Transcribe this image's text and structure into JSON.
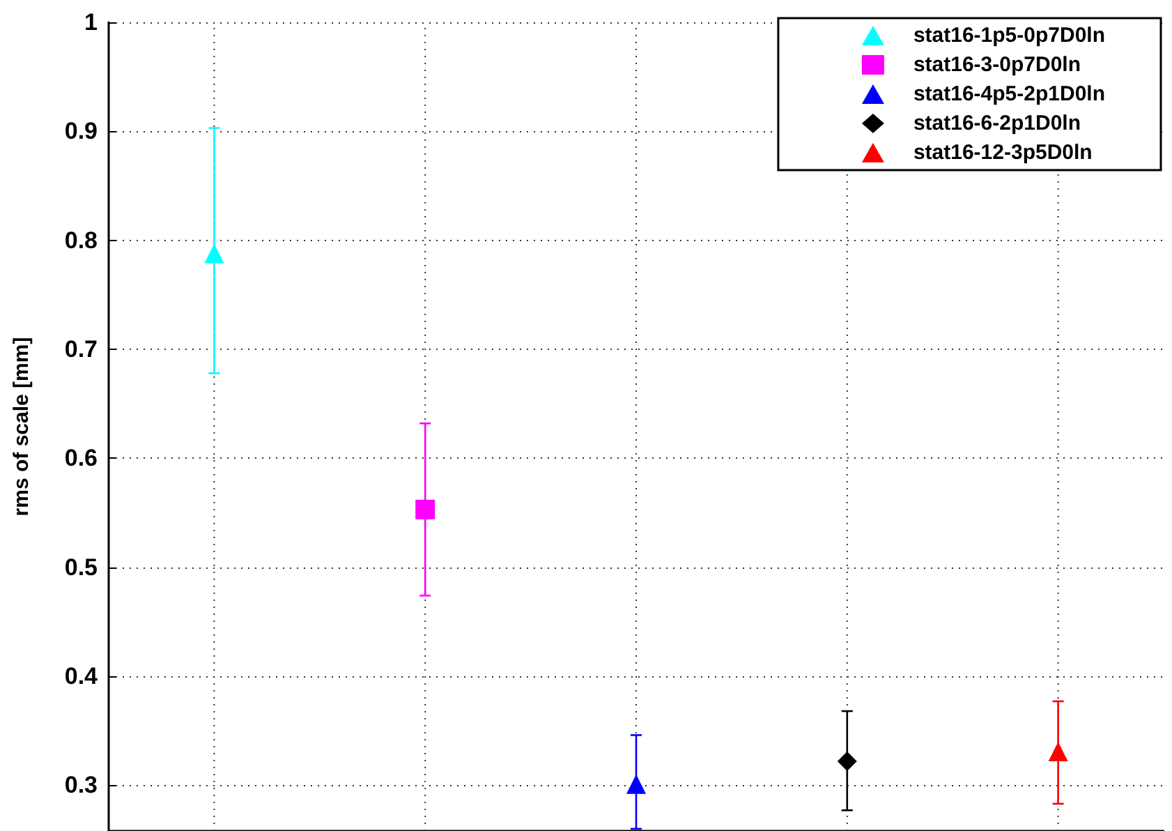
{
  "chart_data": {
    "type": "scatter",
    "ylabel": "rms of scale [mm]",
    "categories": [
      null,
      null,
      null,
      null,
      null
    ],
    "ylim": [
      0.258,
      1
    ],
    "yticks": [
      0.3,
      0.4,
      0.5,
      0.6,
      0.7,
      0.8,
      0.9,
      1
    ],
    "tick_labels": "y",
    "grid": true,
    "legend": "top right",
    "series": [
      {
        "name": "stat16-1p5-0p7D0ln",
        "color": "#00ffff",
        "marker": "triangle",
        "values": [
          0.788,
          null,
          null,
          null,
          null
        ],
        "errors": [
          [
            0.678,
            0.903
          ],
          null,
          null,
          null,
          null
        ]
      },
      {
        "name": "stat16-3-0p7D0ln",
        "color": "#ff00ff",
        "marker": "square",
        "values": [
          null,
          0.553,
          null,
          null,
          null
        ],
        "errors": [
          null,
          [
            0.474,
            0.632
          ],
          null,
          null,
          null
        ]
      },
      {
        "name": "stat16-4p5-2p1D0ln",
        "color": "#0000ff",
        "marker": "triangle",
        "values": [
          null,
          null,
          0.301,
          null,
          null
        ],
        "errors": [
          null,
          null,
          [
            0.26,
            0.346
          ],
          null,
          null
        ]
      },
      {
        "name": "stat16-6-2p1D0ln",
        "color": "#000000",
        "marker": "diamond",
        "values": [
          null,
          null,
          null,
          0.322,
          null
        ],
        "errors": [
          null,
          null,
          null,
          [
            0.277,
            0.368
          ],
          null
        ]
      },
      {
        "name": "stat16-12-3p5D0ln",
        "color": "#ff0000",
        "marker": "triangle",
        "values": [
          null,
          null,
          null,
          null,
          0.331
        ],
        "errors": [
          null,
          null,
          null,
          null,
          [
            0.283,
            0.377
          ]
        ]
      }
    ]
  }
}
